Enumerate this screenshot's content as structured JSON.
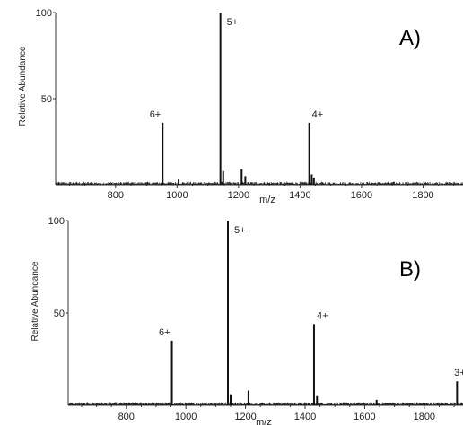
{
  "chart_data": [
    {
      "type": "line",
      "panel_label": "A)",
      "xlabel": "m/z",
      "ylabel": "Relative Abundance",
      "xlim": [
        605,
        1930
      ],
      "ylim": [
        0,
        100
      ],
      "x_ticks": [
        800,
        1000,
        1200,
        1400,
        1600,
        1800
      ],
      "y_ticks": [
        50,
        100
      ],
      "grid": false,
      "peaks": [
        {
          "mz": 953,
          "value": 36,
          "label": "6+"
        },
        {
          "mz": 1005,
          "value": 3,
          "label": ""
        },
        {
          "mz": 1141,
          "value": 100,
          "label": "5+"
        },
        {
          "mz": 1150,
          "value": 8,
          "label": ""
        },
        {
          "mz": 1210,
          "value": 9,
          "label": ""
        },
        {
          "mz": 1222,
          "value": 5,
          "label": ""
        },
        {
          "mz": 1430,
          "value": 36,
          "label": "4+"
        },
        {
          "mz": 1438,
          "value": 6,
          "label": ""
        },
        {
          "mz": 1445,
          "value": 4,
          "label": ""
        }
      ]
    },
    {
      "type": "line",
      "panel_label": "B)",
      "xlabel": "m/z",
      "ylabel": "Relative Abundance",
      "xlim": [
        605,
        1930
      ],
      "ylim": [
        0,
        100
      ],
      "x_ticks": [
        800,
        1000,
        1200,
        1400,
        1600,
        1800
      ],
      "y_ticks": [
        50,
        100
      ],
      "grid": false,
      "peaks": [
        {
          "mz": 953,
          "value": 35,
          "label": "6+"
        },
        {
          "mz": 1141,
          "value": 100,
          "label": "5+"
        },
        {
          "mz": 1150,
          "value": 6,
          "label": ""
        },
        {
          "mz": 1210,
          "value": 8,
          "label": ""
        },
        {
          "mz": 1430,
          "value": 44,
          "label": "4+"
        },
        {
          "mz": 1440,
          "value": 5,
          "label": ""
        },
        {
          "mz": 1640,
          "value": 3,
          "label": ""
        },
        {
          "mz": 1910,
          "value": 13,
          "label": "3+"
        }
      ]
    }
  ]
}
